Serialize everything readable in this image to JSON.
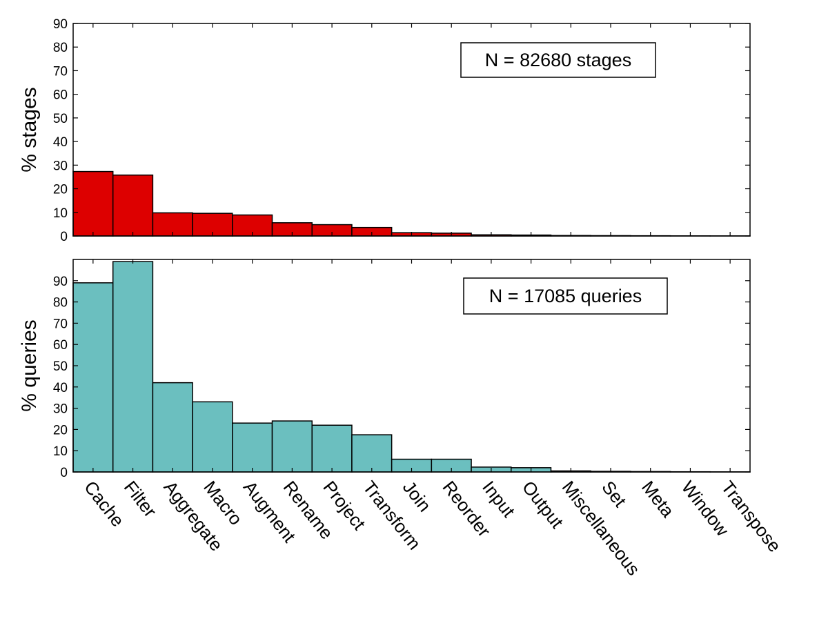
{
  "chart_data": [
    {
      "type": "bar",
      "title": "",
      "xlabel": "",
      "ylabel": "% stages",
      "ylim": [
        0,
        90
      ],
      "yticks": [
        0,
        10,
        20,
        30,
        40,
        50,
        60,
        70,
        80,
        90
      ],
      "annotation": "N = 82680 stages",
      "bar_color": "#dd0000",
      "categories": [
        "Cache",
        "Filter",
        "Aggregate",
        "Macro",
        "Augment",
        "Rename",
        "Project",
        "Transform",
        "Join",
        "Reorder",
        "Input",
        "Output",
        "Miscellaneous",
        "Set",
        "Meta",
        "Window",
        "Transpose"
      ],
      "values": [
        27.3,
        25.8,
        9.8,
        9.6,
        8.9,
        5.6,
        4.8,
        3.6,
        1.4,
        1.2,
        0.5,
        0.4,
        0.2,
        0.15,
        0.1,
        0.05,
        0.03
      ]
    },
    {
      "type": "bar",
      "title": "",
      "xlabel": "",
      "ylabel": "% queries",
      "ylim": [
        0,
        100
      ],
      "yticks": [
        0,
        10,
        20,
        30,
        40,
        50,
        60,
        70,
        80,
        90
      ],
      "annotation": "N = 17085 queries",
      "bar_color": "#6bbfbf",
      "categories": [
        "Cache",
        "Filter",
        "Aggregate",
        "Macro",
        "Augment",
        "Rename",
        "Project",
        "Transform",
        "Join",
        "Reorder",
        "Input",
        "Output",
        "Miscellaneous",
        "Set",
        "Meta",
        "Window",
        "Transpose"
      ],
      "values": [
        89,
        99,
        42,
        33,
        23,
        24,
        22,
        17.5,
        6,
        6,
        2.3,
        2,
        0.5,
        0.3,
        0.2,
        0.1,
        0.05
      ]
    }
  ]
}
